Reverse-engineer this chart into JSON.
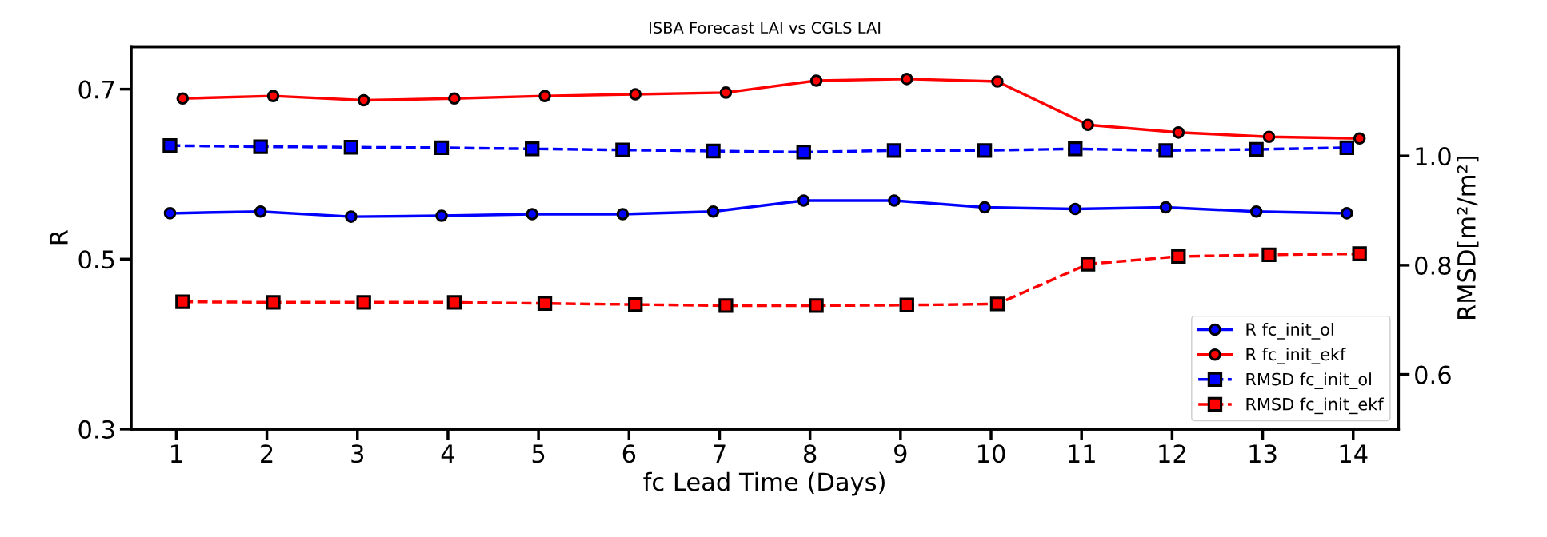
{
  "chart_data": {
    "type": "line",
    "title": "ISBA Forecast LAI vs CGLS LAI",
    "xlabel": "fc Lead Time (Days)",
    "ylabel": "R",
    "y2label": "RMSD[m²/m²]",
    "xlim": [
      0.5,
      14.5
    ],
    "xticks": [
      1,
      2,
      3,
      4,
      5,
      6,
      7,
      8,
      9,
      10,
      11,
      12,
      13,
      14
    ],
    "ylim": [
      0.3,
      0.75
    ],
    "yticks": [
      0.3,
      0.5,
      0.7
    ],
    "y2lim": [
      0.5,
      1.2
    ],
    "y2ticks": [
      0.6,
      0.8,
      {
        "value": 1,
        "label": "1.0"
      }
    ],
    "legend": "lower right",
    "grid": false,
    "series": [
      {
        "name": "R fc_init_ol",
        "color": "#0000ff",
        "marker": "circle",
        "line_style": "solid",
        "x": [
          0.93,
          1.93,
          2.93,
          3.93,
          4.93,
          5.93,
          6.93,
          7.93,
          8.93,
          9.93,
          10.93,
          11.93,
          12.93,
          13.93
        ],
        "values": [
          0.554,
          0.556,
          0.55,
          0.551,
          0.553,
          0.553,
          0.556,
          0.569,
          0.569,
          0.561,
          0.559,
          0.561,
          0.556,
          0.554
        ]
      },
      {
        "name": "R fc_init_ekf",
        "color": "#ff0000",
        "marker": "circle",
        "line_style": "solid",
        "x": [
          1.07,
          2.07,
          3.07,
          4.07,
          5.07,
          6.07,
          7.07,
          8.07,
          9.07,
          10.07,
          11.07,
          12.07,
          13.07,
          14.07
        ],
        "values": [
          0.689,
          0.692,
          0.687,
          0.689,
          0.692,
          0.694,
          0.696,
          0.71,
          0.712,
          0.709,
          0.658,
          0.649,
          0.644,
          0.642
        ]
      },
      {
        "name": "RMSD fc_init_ol",
        "color": "#0000ff",
        "marker": "square",
        "line_style": "dashed",
        "axis": "y2",
        "x": [
          0.93,
          1.93,
          2.93,
          3.93,
          4.93,
          5.93,
          6.93,
          7.93,
          8.93,
          9.93,
          10.93,
          11.93,
          12.93,
          13.93
        ],
        "values": [
          1.019,
          1.017,
          1.016,
          1.015,
          1.013,
          1.011,
          1.009,
          1.007,
          1.01,
          1.01,
          1.013,
          1.01,
          1.012,
          1.015
        ]
      },
      {
        "name": "RMSD fc_init_ekf",
        "color": "#ff0000",
        "marker": "square",
        "line_style": "dashed",
        "axis": "y2",
        "x": [
          1.07,
          2.07,
          3.07,
          4.07,
          5.07,
          6.07,
          7.07,
          8.07,
          9.07,
          10.07,
          11.07,
          12.07,
          13.07,
          14.07
        ],
        "values": [
          0.733,
          0.732,
          0.732,
          0.732,
          0.73,
          0.728,
          0.726,
          0.726,
          0.727,
          0.729,
          0.802,
          0.816,
          0.819,
          0.821
        ]
      }
    ]
  }
}
